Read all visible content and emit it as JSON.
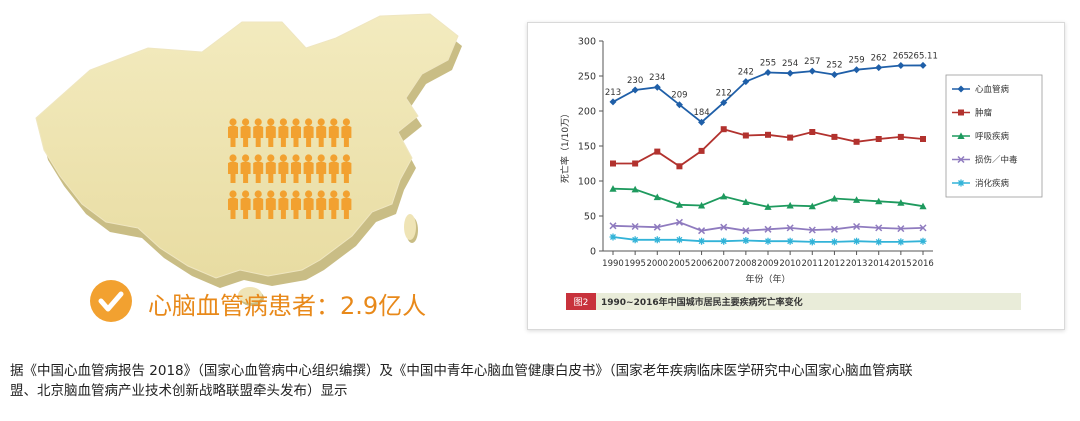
{
  "left_panel": {
    "label": "心脑血管病患者：2.9亿人",
    "person_rows": 3,
    "person_cols": 10,
    "colors": {
      "map": "#f0e5b3",
      "person": "#f2a130",
      "check": "#f2a130",
      "label": "#e8891a"
    }
  },
  "chart_data": {
    "type": "line",
    "x": [
      "1990",
      "1995",
      "2000",
      "2005",
      "2006",
      "2007",
      "2008",
      "2009",
      "2010",
      "2011",
      "2012",
      "2013",
      "2014",
      "2015",
      "2016"
    ],
    "ylim": [
      0,
      300
    ],
    "yticks": [
      0,
      50,
      100,
      150,
      200,
      250,
      300
    ],
    "ylabel": "死亡率（1/10万）",
    "xlabel": "年份（年）",
    "caption_tag": "图2",
    "caption": "1990~2016年中国城市居民主要疾病死亡率变化",
    "series": [
      {
        "name": "心血管病",
        "color": "#1f5fa8",
        "marker": "diamond",
        "values": [
          213,
          230,
          234,
          209,
          184,
          212,
          242,
          255,
          254,
          257,
          252,
          259,
          262,
          265,
          265.11
        ],
        "labels": [
          "213",
          "230",
          "234",
          "209",
          "184",
          "212",
          "242",
          "255",
          "254",
          "257",
          "252",
          "259",
          "262",
          "265",
          "265.11"
        ]
      },
      {
        "name": "肿瘤",
        "color": "#b2322e",
        "marker": "square",
        "values": [
          125,
          125,
          142,
          121,
          143,
          174,
          165,
          166,
          162,
          170,
          163,
          156,
          160,
          163,
          160
        ]
      },
      {
        "name": "呼吸疾病",
        "color": "#1e9a5e",
        "marker": "triangle",
        "values": [
          89,
          88,
          77,
          66,
          65,
          78,
          70,
          63,
          65,
          64,
          75,
          73,
          71,
          69,
          64
        ]
      },
      {
        "name": "损伤／中毒",
        "color": "#8f7bbf",
        "marker": "cross",
        "values": [
          36,
          35,
          34,
          41,
          29,
          34,
          29,
          31,
          33,
          30,
          31,
          35,
          33,
          32,
          33
        ]
      },
      {
        "name": "消化疾病",
        "color": "#32b3d8",
        "marker": "star",
        "values": [
          20,
          16,
          16,
          16,
          14,
          14,
          15,
          14,
          14,
          13,
          13,
          14,
          13,
          13,
          14
        ]
      }
    ]
  },
  "footer": {
    "line1": "据《中国心血管病报告 2018》（国家心血管病中心组织编撰）及《中国中青年心脑血管健康白皮书》（国家老年疾病临床医学研究中心国家心脑血管病联",
    "line2": "盟、北京脑血管病产业技术创新战略联盟牵头发布）显示"
  }
}
